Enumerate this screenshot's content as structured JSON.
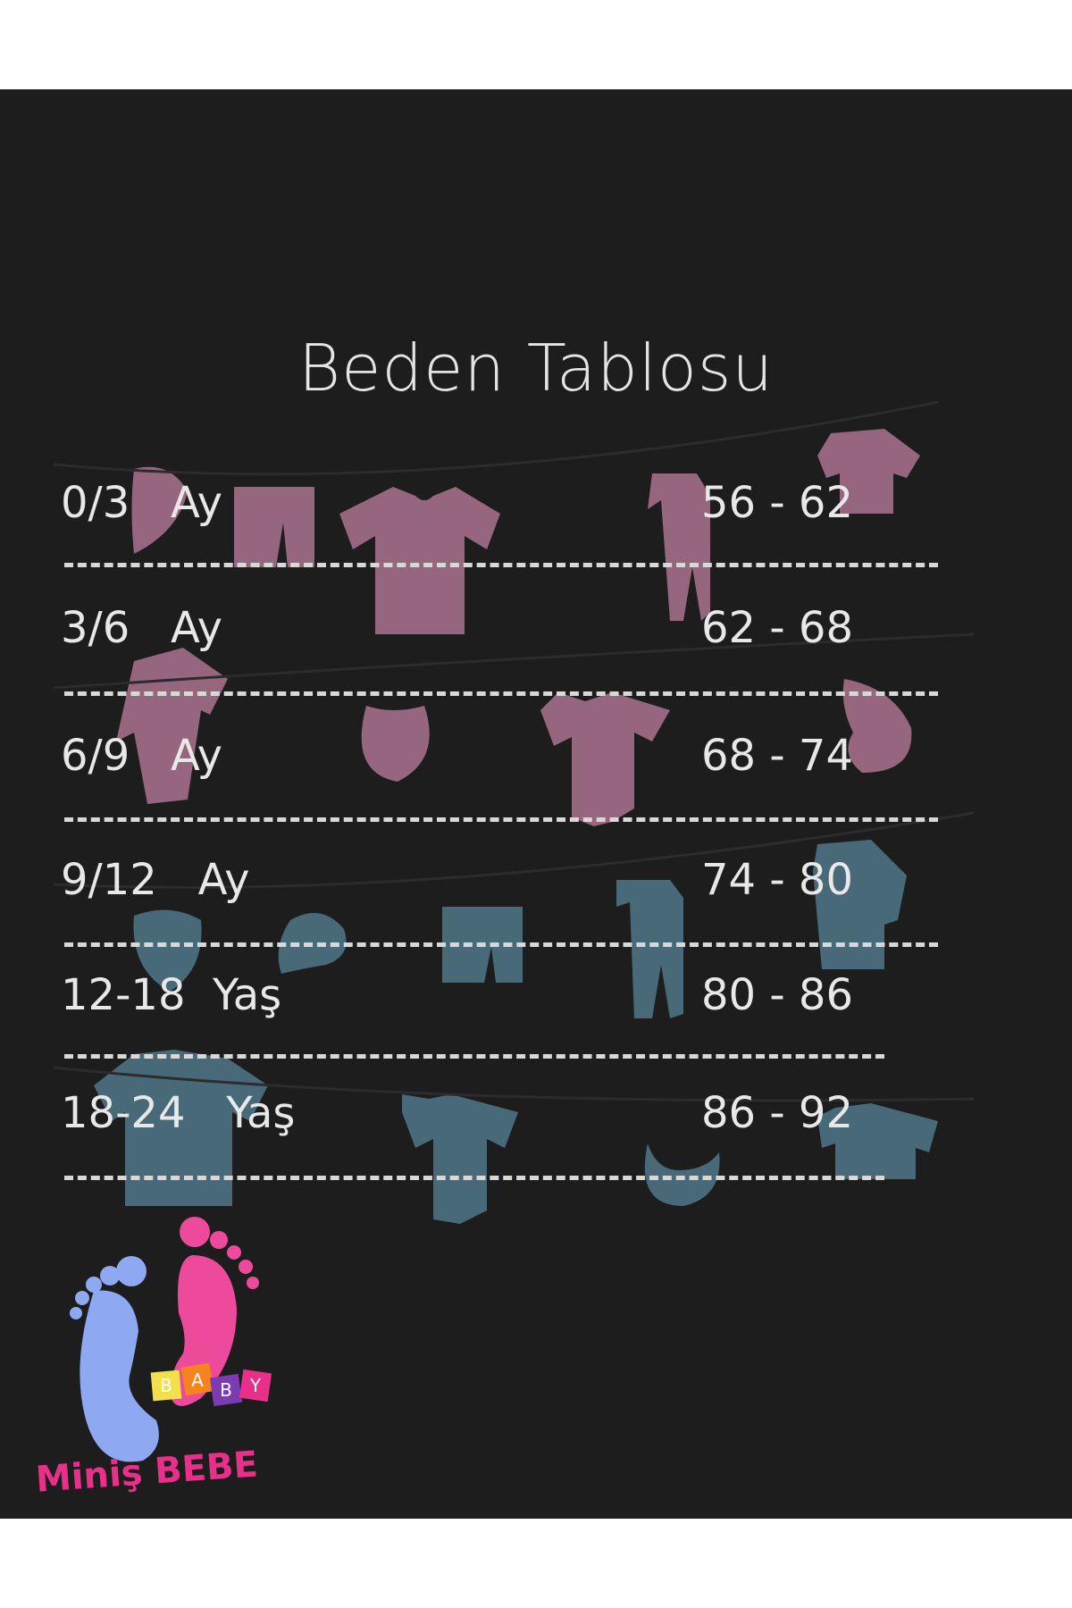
{
  "title": "Beden Tablosu",
  "rows": [
    {
      "age": "0/3   Ay",
      "size": "56 - 62"
    },
    {
      "age": "3/6   Ay",
      "size": "62 - 68"
    },
    {
      "age": "6/9   Ay",
      "size": "68 - 74"
    },
    {
      "age": "9/12   Ay",
      "size": "74 - 80"
    },
    {
      "age": "12-18  Yaş",
      "size": "80 - 86"
    },
    {
      "age": "18-24   Yaş",
      "size": "86 - 92"
    }
  ],
  "logo": {
    "blocks": "BABY",
    "brand": "Miniş BEBE"
  },
  "colors": {
    "background": "#1d1d1e",
    "text": "#e8e8e8",
    "pink_clothes": "#9c6a83",
    "blue_clothes": "#4b6f7d",
    "brand_pink": "#e8308a",
    "brand_blue": "#8ea9f2"
  }
}
